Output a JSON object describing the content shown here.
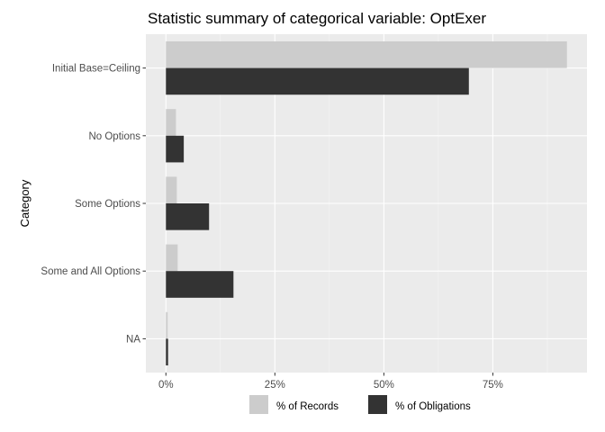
{
  "chart_data": {
    "type": "bar",
    "orientation": "horizontal",
    "title": "Statistic summary of categorical variable:  OptExer",
    "xlabel": "",
    "ylabel": "Category",
    "categories": [
      "Initial Base=Ceiling",
      "No Options",
      "Some Options",
      "Some and All Options",
      "NA"
    ],
    "series": [
      {
        "name": "% of Records",
        "color": "#cccccc",
        "values": [
          0.92,
          0.023,
          0.025,
          0.027,
          0.004
        ]
      },
      {
        "name": "% of Obligations",
        "color": "#333333",
        "values": [
          0.695,
          0.041,
          0.099,
          0.155,
          0.005
        ]
      }
    ],
    "xlim": [
      -0.046,
      0.966
    ],
    "xticks": [
      0,
      0.25,
      0.5,
      0.75
    ],
    "xtick_labels": [
      "0%",
      "25%",
      "50%",
      "75%"
    ],
    "panel_background": "#ebebeb",
    "grid": true,
    "legend_position": "bottom"
  }
}
